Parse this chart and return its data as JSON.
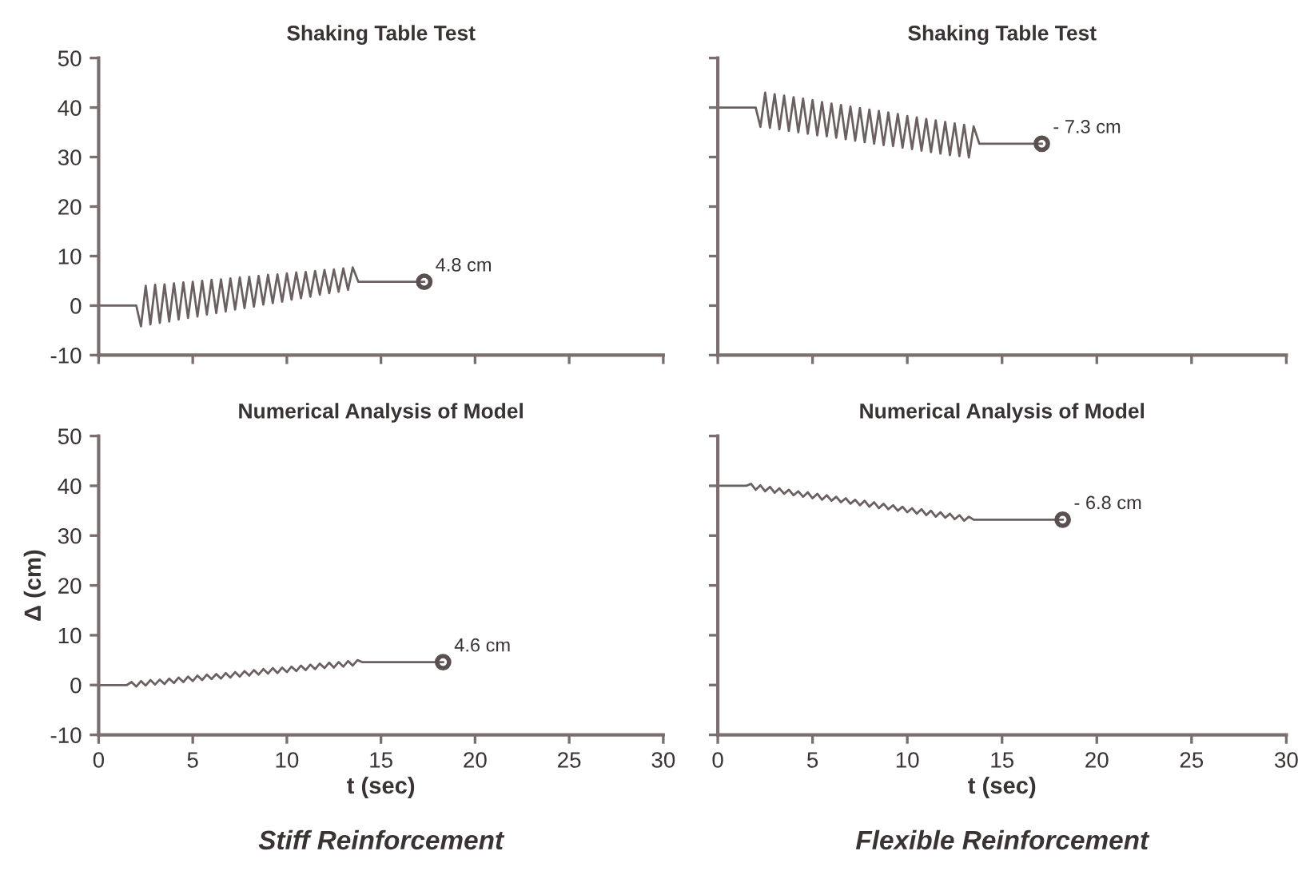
{
  "chart_data": [
    {
      "type": "line",
      "title": "Shaking Table Test",
      "xlim": [
        0,
        30
      ],
      "ylim": [
        -10,
        50
      ],
      "xticks": [
        0,
        5,
        10,
        15,
        20,
        25,
        30
      ],
      "yticks": [
        -10,
        0,
        10,
        20,
        30,
        40,
        50
      ],
      "tick_labels": "y",
      "series": [
        {
          "type": "line",
          "color": "#6b6060",
          "x": [
            0,
            2.0,
            2.25,
            2.5,
            2.75,
            3.0,
            3.25,
            3.5,
            3.75,
            4.0,
            4.25,
            4.5,
            4.75,
            5.0,
            5.25,
            5.5,
            5.75,
            6.0,
            6.25,
            6.5,
            6.75,
            7.0,
            7.25,
            7.5,
            7.75,
            8.0,
            8.25,
            8.5,
            8.75,
            9.0,
            9.25,
            9.5,
            9.75,
            10.0,
            10.25,
            10.5,
            10.75,
            11.0,
            11.25,
            11.5,
            11.75,
            12.0,
            12.25,
            12.5,
            12.75,
            13.0,
            13.25,
            13.5,
            13.8,
            17.3
          ],
          "values": [
            0,
            0,
            -4.2,
            4.0,
            -3.8,
            4.2,
            -3.5,
            4.3,
            -3.2,
            4.5,
            -2.8,
            4.7,
            -2.5,
            4.8,
            -2.2,
            5.0,
            -1.8,
            5.2,
            -1.5,
            5.3,
            -1.2,
            5.5,
            -0.8,
            5.7,
            -0.5,
            5.8,
            -0.2,
            6.0,
            0.2,
            6.2,
            0.5,
            6.3,
            0.8,
            6.5,
            1.2,
            6.7,
            1.5,
            6.8,
            1.8,
            7.0,
            2.2,
            7.2,
            2.5,
            7.3,
            2.8,
            7.5,
            3.2,
            7.7,
            4.8,
            4.8
          ]
        },
        {
          "type": "scatter",
          "marker": "circle",
          "color": "#5a5050",
          "x": [
            17.3
          ],
          "values": [
            4.8
          ]
        }
      ],
      "annotations": [
        {
          "text": "4.8 cm",
          "x": 17.3,
          "y": 4.8
        }
      ]
    },
    {
      "type": "line",
      "title": "Shaking Table Test",
      "xlim": [
        0,
        30
      ],
      "ylim": [
        -10,
        50
      ],
      "xticks": [
        0,
        5,
        10,
        15,
        20,
        25,
        30
      ],
      "yticks": [
        -10,
        0,
        10,
        20,
        30,
        40,
        50
      ],
      "tick_labels": false,
      "series": [
        {
          "type": "line",
          "color": "#6b6060",
          "x": [
            0,
            2.0,
            2.25,
            2.5,
            2.75,
            3.0,
            3.25,
            3.5,
            3.75,
            4.0,
            4.25,
            4.5,
            4.75,
            5.0,
            5.25,
            5.5,
            5.75,
            6.0,
            6.25,
            6.5,
            6.75,
            7.0,
            7.25,
            7.5,
            7.75,
            8.0,
            8.25,
            8.5,
            8.75,
            9.0,
            9.25,
            9.5,
            9.75,
            10.0,
            10.25,
            10.5,
            10.75,
            11.0,
            11.25,
            11.5,
            11.75,
            12.0,
            12.25,
            12.5,
            12.75,
            13.0,
            13.25,
            13.5,
            13.8,
            17.1
          ],
          "values": [
            40,
            40,
            36.1,
            43,
            35.9,
            42.7,
            35.6,
            42.4,
            35.3,
            42.1,
            35.0,
            41.8,
            34.7,
            41.5,
            34.4,
            41.1,
            34.2,
            40.8,
            33.9,
            40.5,
            33.6,
            40.2,
            33.3,
            39.9,
            33.0,
            39.6,
            32.7,
            39.3,
            32.4,
            39.0,
            32.2,
            38.7,
            31.9,
            38.3,
            31.6,
            38.0,
            31.3,
            37.7,
            31.0,
            37.4,
            30.7,
            37.1,
            30.4,
            36.8,
            30.2,
            36.5,
            29.9,
            36.2,
            32.7,
            32.7
          ]
        },
        {
          "type": "scatter",
          "marker": "circle",
          "color": "#5a5050",
          "x": [
            17.1
          ],
          "values": [
            32.7
          ]
        }
      ],
      "annotations": [
        {
          "text": "- 7.3 cm",
          "x": 17.1,
          "y": 32.7
        }
      ]
    },
    {
      "type": "line",
      "title": "Numerical Analysis of Model",
      "xlabel": "t (sec)",
      "ylabel": "Δ (cm)",
      "xlim": [
        0,
        30
      ],
      "ylim": [
        -10,
        50
      ],
      "xticks": [
        0,
        5,
        10,
        15,
        20,
        25,
        30
      ],
      "yticks": [
        -10,
        0,
        10,
        20,
        30,
        40,
        50
      ],
      "series": [
        {
          "type": "line",
          "color": "#6b6060",
          "x": [
            0,
            1.5,
            1.75,
            2.0,
            2.25,
            2.5,
            2.75,
            3.0,
            3.25,
            3.5,
            3.75,
            4.0,
            4.25,
            4.5,
            4.75,
            5.0,
            5.25,
            5.5,
            5.75,
            6.0,
            6.25,
            6.5,
            6.75,
            7.0,
            7.25,
            7.5,
            7.75,
            8.0,
            8.25,
            8.5,
            8.75,
            9.0,
            9.25,
            9.5,
            9.75,
            10.0,
            10.25,
            10.5,
            10.75,
            11.0,
            11.25,
            11.5,
            11.75,
            12.0,
            12.25,
            12.5,
            12.75,
            13.0,
            13.25,
            13.5,
            13.75,
            14.0,
            18.3
          ],
          "values": [
            0,
            0,
            0.6,
            -0.3,
            0.8,
            -0.1,
            1.0,
            0.1,
            1.1,
            0.2,
            1.3,
            0.4,
            1.5,
            0.6,
            1.7,
            0.8,
            1.9,
            1.0,
            2.1,
            1.2,
            2.2,
            1.3,
            2.4,
            1.5,
            2.6,
            1.7,
            2.8,
            1.9,
            3.0,
            2.1,
            3.2,
            2.3,
            3.4,
            2.4,
            3.5,
            2.6,
            3.7,
            2.8,
            3.9,
            3.0,
            4.1,
            3.2,
            4.3,
            3.4,
            4.5,
            3.5,
            4.6,
            3.7,
            4.8,
            3.9,
            5.0,
            4.6,
            4.6
          ]
        },
        {
          "type": "scatter",
          "marker": "circle",
          "color": "#5a5050",
          "x": [
            18.3
          ],
          "values": [
            4.6
          ]
        }
      ],
      "annotations": [
        {
          "text": "4.6 cm",
          "x": 18.3,
          "y": 4.6
        },
        "Stiff Reinforcement"
      ]
    },
    {
      "type": "line",
      "title": "Numerical Analysis of Model",
      "xlabel": "t (sec)",
      "xlim": [
        0,
        30
      ],
      "ylim": [
        -10,
        50
      ],
      "xticks": [
        0,
        5,
        10,
        15,
        20,
        25,
        30
      ],
      "yticks": [
        -10,
        0,
        10,
        20,
        30,
        40,
        50
      ],
      "tick_labels": "x",
      "series": [
        {
          "type": "line",
          "color": "#6b6060",
          "x": [
            0,
            1.5,
            1.75,
            2.0,
            2.25,
            2.5,
            2.75,
            3.0,
            3.25,
            3.5,
            3.75,
            4.0,
            4.25,
            4.5,
            4.75,
            5.0,
            5.25,
            5.5,
            5.75,
            6.0,
            6.25,
            6.5,
            6.75,
            7.0,
            7.25,
            7.5,
            7.75,
            8.0,
            8.25,
            8.5,
            8.75,
            9.0,
            9.25,
            9.5,
            9.75,
            10.0,
            10.25,
            10.5,
            10.75,
            11.0,
            11.25,
            11.5,
            11.75,
            12.0,
            12.25,
            12.5,
            12.75,
            13.0,
            13.25,
            13.5,
            18.2
          ],
          "values": [
            40,
            40,
            40.4,
            39.2,
            40.1,
            38.9,
            39.8,
            38.6,
            39.5,
            38.4,
            39.2,
            38.1,
            38.9,
            37.8,
            38.7,
            37.5,
            38.4,
            37.2,
            38.1,
            37.0,
            37.8,
            36.7,
            37.5,
            36.4,
            37.2,
            36.1,
            37.0,
            35.8,
            36.7,
            35.5,
            36.4,
            35.3,
            36.1,
            35.0,
            35.8,
            34.7,
            35.5,
            34.4,
            35.3,
            34.1,
            35.0,
            33.8,
            34.7,
            33.6,
            34.4,
            33.3,
            34.1,
            33.0,
            33.8,
            33.2,
            33.2
          ]
        },
        {
          "type": "scatter",
          "marker": "circle",
          "color": "#5a5050",
          "x": [
            18.2
          ],
          "values": [
            33.2
          ]
        }
      ],
      "annotations": [
        {
          "text": "- 6.8 cm",
          "x": 18.2,
          "y": 33.2
        },
        "Flexible Reinforcement"
      ]
    }
  ]
}
